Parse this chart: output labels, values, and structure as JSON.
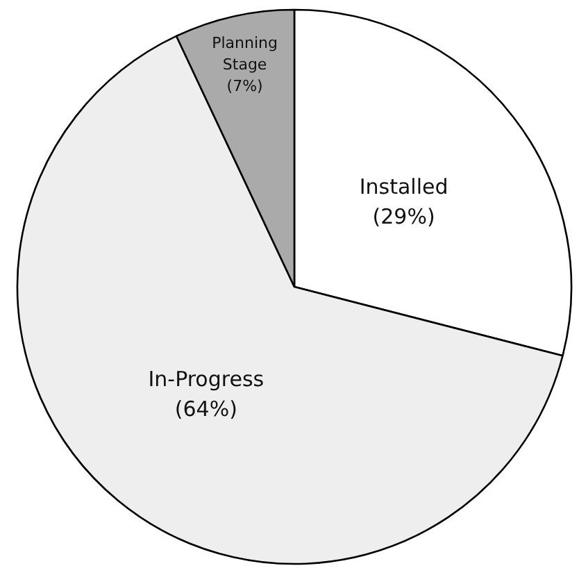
{
  "chart_data": {
    "type": "pie",
    "categories": [
      "Installed",
      "In-Progress",
      "Planning Stage"
    ],
    "values": [
      29,
      64,
      7
    ],
    "colors": [
      "#ffffff",
      "#eeeeee",
      "#aaaaaa"
    ],
    "value_labels": [
      "(29%)",
      "(64%)",
      "(7%)"
    ]
  }
}
